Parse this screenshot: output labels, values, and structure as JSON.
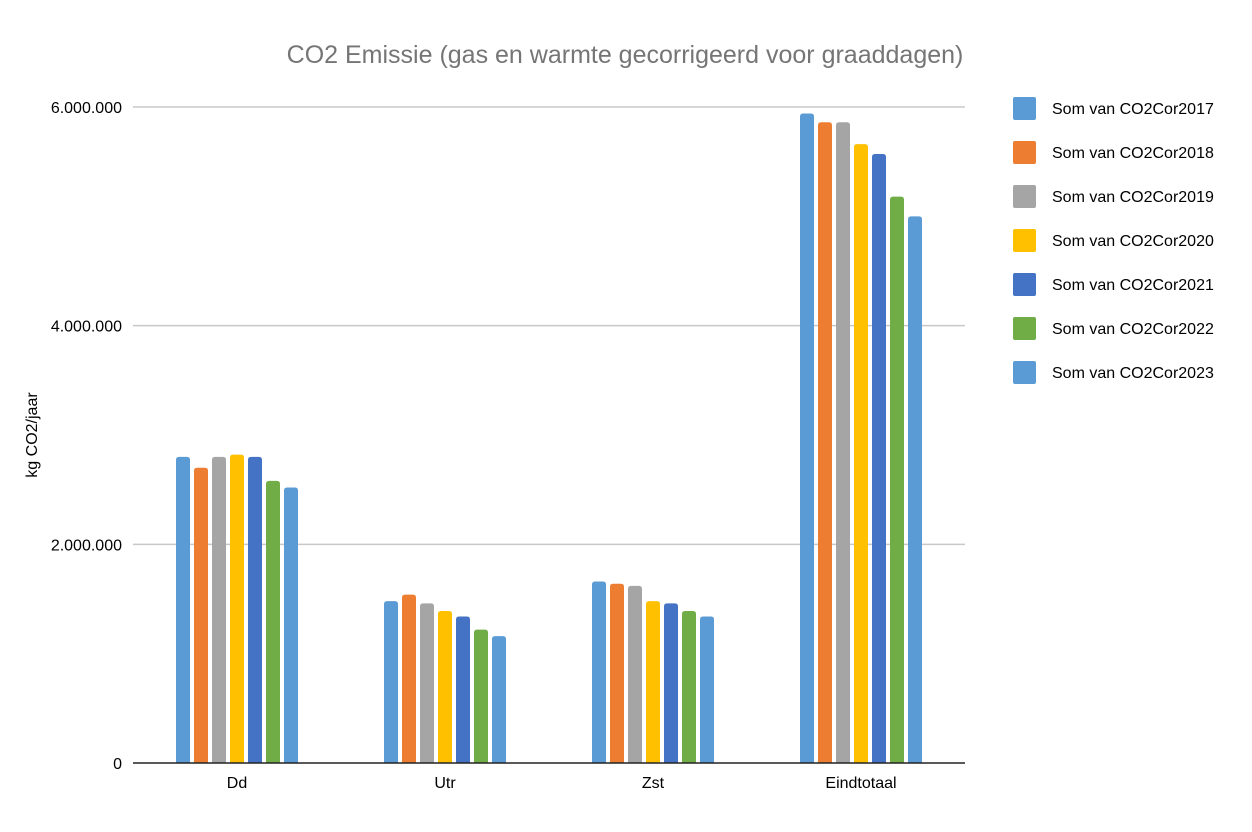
{
  "chart_data": {
    "type": "bar",
    "title": "CO2 Emissie (gas en warmte gecorrigeerd voor graaddagen)",
    "xlabel": "",
    "ylabel": "kg CO2/jaar",
    "ylim": [
      0,
      6000000
    ],
    "yticks": [
      0,
      2000000,
      4000000,
      6000000
    ],
    "ytick_labels": [
      "0",
      "2.000.000",
      "4.000.000",
      "6.000.000"
    ],
    "grid": true,
    "legend_position": "right",
    "categories": [
      "Dd",
      "Utr",
      "Zst",
      "Eindtotaal"
    ],
    "series": [
      {
        "name": "Som van CO2Cor2017",
        "color": "#5b9bd5",
        "values": [
          2800000,
          1480000,
          1660000,
          5940000
        ]
      },
      {
        "name": "Som van CO2Cor2018",
        "color": "#ed7d31",
        "values": [
          2700000,
          1540000,
          1640000,
          5860000
        ]
      },
      {
        "name": "Som van CO2Cor2019",
        "color": "#a5a5a5",
        "values": [
          2800000,
          1460000,
          1620000,
          5860000
        ]
      },
      {
        "name": "Som van CO2Cor2020",
        "color": "#ffc000",
        "values": [
          2820000,
          1390000,
          1480000,
          5660000
        ]
      },
      {
        "name": "Som van CO2Cor2021",
        "color": "#4472c4",
        "values": [
          2800000,
          1340000,
          1460000,
          5570000
        ]
      },
      {
        "name": "Som van CO2Cor2022",
        "color": "#70ad47",
        "values": [
          2580000,
          1220000,
          1390000,
          5180000
        ]
      },
      {
        "name": "Som van CO2Cor2023",
        "color": "#5b9bd5",
        "values": [
          2520000,
          1160000,
          1340000,
          5000000
        ]
      }
    ]
  }
}
